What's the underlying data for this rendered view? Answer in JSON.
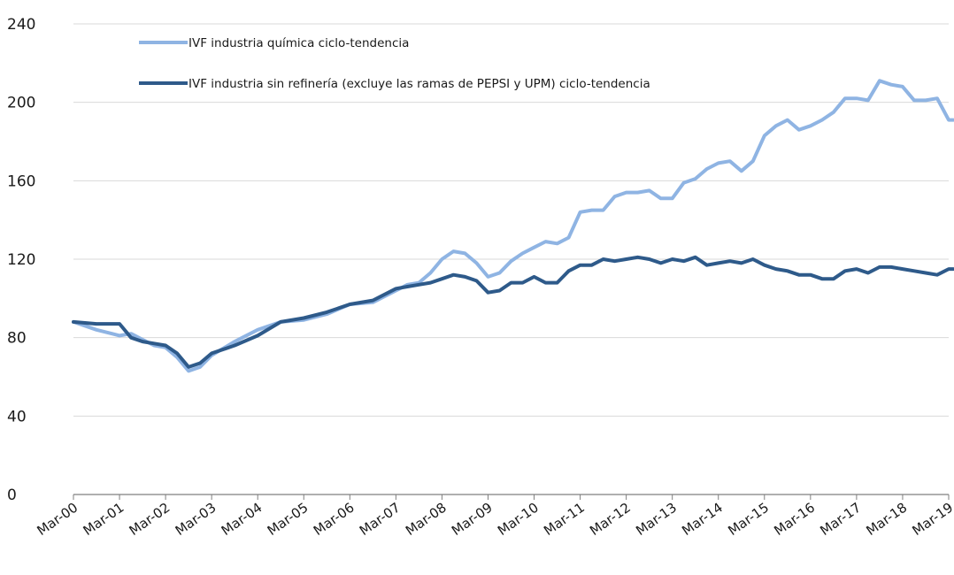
{
  "chart_data": {
    "type": "line",
    "title": "",
    "xlabel": "",
    "ylabel": "",
    "ylim": [
      0,
      240
    ],
    "yticks": [
      0,
      40,
      80,
      120,
      160,
      200,
      240
    ],
    "xticks": [
      "Mar-00",
      "Mar-01",
      "Mar-02",
      "Mar-03",
      "Mar-04",
      "Mar-05",
      "Mar-06",
      "Mar-07",
      "Mar-08",
      "Mar-09",
      "Mar-10",
      "Mar-11",
      "Mar-12",
      "Mar-13",
      "Mar-14",
      "Mar-15",
      "Mar-16",
      "Mar-17",
      "Mar-18",
      "Mar-19"
    ],
    "grid": "horizontal",
    "legend_position": "top-left",
    "series": [
      {
        "name": "IVF industria química ciclo-tendencia",
        "color": "#8fb4e3",
        "x": [
          2000.0,
          2000.5,
          2001.0,
          2001.25,
          2001.5,
          2001.75,
          2002.0,
          2002.25,
          2002.5,
          2002.75,
          2003.0,
          2003.5,
          2004.0,
          2004.5,
          2005.0,
          2005.5,
          2006.0,
          2006.5,
          2007.0,
          2007.25,
          2007.5,
          2007.75,
          2008.0,
          2008.25,
          2008.5,
          2008.75,
          2009.0,
          2009.25,
          2009.5,
          2009.75,
          2010.0,
          2010.25,
          2010.5,
          2010.75,
          2011.0,
          2011.25,
          2011.5,
          2011.75,
          2012.0,
          2012.25,
          2012.5,
          2012.75,
          2013.0,
          2013.25,
          2013.5,
          2013.75,
          2014.0,
          2014.25,
          2014.5,
          2014.75,
          2015.0,
          2015.25,
          2015.5,
          2015.75,
          2016.0,
          2016.25,
          2016.5,
          2016.75,
          2017.0,
          2017.25,
          2017.5,
          2017.75,
          2018.0,
          2018.25,
          2018.5,
          2018.75,
          2019.0,
          2019.1
        ],
        "values": [
          88,
          84,
          81,
          82,
          79,
          76,
          75,
          70,
          63,
          65,
          71,
          78,
          84,
          88,
          89,
          92,
          97,
          98,
          104,
          107,
          108,
          113,
          120,
          124,
          123,
          118,
          111,
          113,
          119,
          123,
          126,
          129,
          128,
          131,
          144,
          145,
          145,
          152,
          154,
          154,
          155,
          151,
          151,
          159,
          161,
          166,
          169,
          170,
          165,
          170,
          183,
          188,
          191,
          186,
          188,
          191,
          195,
          202,
          202,
          201,
          211,
          209,
          208,
          201,
          201,
          202,
          191,
          191
        ]
      },
      {
        "name": "IVF industria sin refinería (excluye las ramas de PEPSI y UPM) ciclo-tendencia",
        "color": "#2e5a8a",
        "x": [
          2000.0,
          2000.5,
          2001.0,
          2001.25,
          2001.5,
          2001.75,
          2002.0,
          2002.25,
          2002.5,
          2002.75,
          2003.0,
          2003.5,
          2004.0,
          2004.5,
          2005.0,
          2005.5,
          2006.0,
          2006.5,
          2007.0,
          2007.25,
          2007.5,
          2007.75,
          2008.0,
          2008.25,
          2008.5,
          2008.75,
          2009.0,
          2009.25,
          2009.5,
          2009.75,
          2010.0,
          2010.25,
          2010.5,
          2010.75,
          2011.0,
          2011.25,
          2011.5,
          2011.75,
          2012.0,
          2012.25,
          2012.5,
          2012.75,
          2013.0,
          2013.25,
          2013.5,
          2013.75,
          2014.0,
          2014.25,
          2014.5,
          2014.75,
          2015.0,
          2015.25,
          2015.5,
          2015.75,
          2016.0,
          2016.25,
          2016.5,
          2016.75,
          2017.0,
          2017.25,
          2017.5,
          2017.75,
          2018.0,
          2018.25,
          2018.5,
          2018.75,
          2019.0,
          2019.1
        ],
        "values": [
          88,
          87,
          87,
          80,
          78,
          77,
          76,
          72,
          65,
          67,
          72,
          76,
          81,
          88,
          90,
          93,
          97,
          99,
          105,
          106,
          107,
          108,
          110,
          112,
          111,
          109,
          103,
          104,
          108,
          108,
          111,
          108,
          108,
          114,
          117,
          117,
          120,
          119,
          120,
          121,
          120,
          118,
          120,
          119,
          121,
          117,
          118,
          119,
          118,
          120,
          117,
          115,
          114,
          112,
          112,
          110,
          110,
          114,
          115,
          113,
          116,
          116,
          115,
          114,
          113,
          112,
          115,
          115
        ]
      }
    ]
  }
}
